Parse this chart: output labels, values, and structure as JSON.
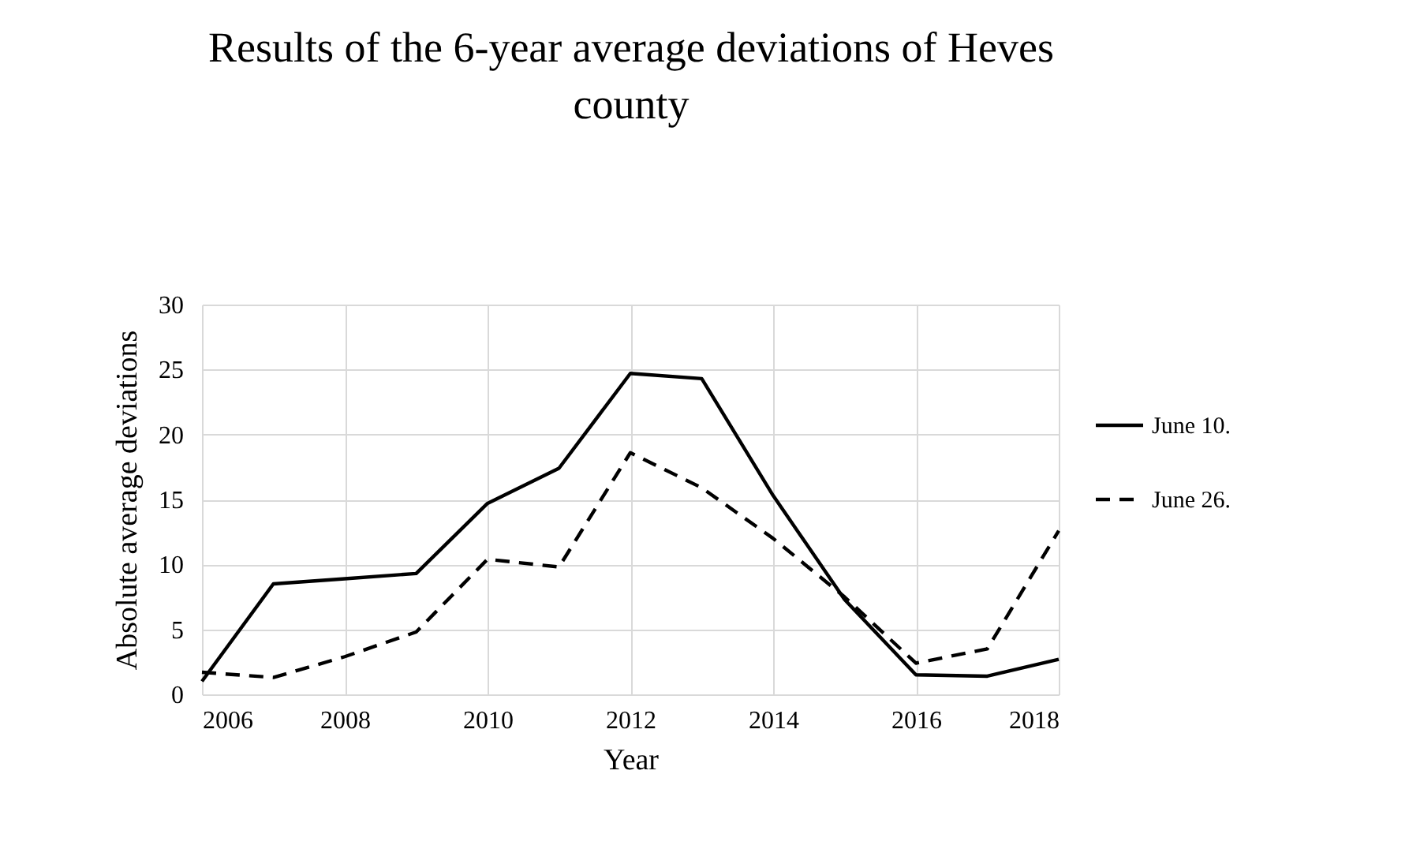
{
  "chart_data": {
    "type": "line",
    "title": "Results of the 6-year average deviations of Heves county",
    "xlabel": "Year",
    "ylabel": "Absolute average deviations",
    "x": [
      2006,
      2007,
      2008,
      2009,
      2010,
      2011,
      2012,
      2013,
      2014,
      2015,
      2016,
      2017,
      2018
    ],
    "series": [
      {
        "name": "June 10.",
        "color": "#000000",
        "line_style": "solid",
        "values": [
          1.0,
          8.5,
          8.9,
          9.3,
          14.7,
          17.4,
          24.7,
          24.3,
          15.3,
          7.3,
          1.5,
          1.4,
          2.7
        ]
      },
      {
        "name": "June 26.",
        "color": "#000000",
        "line_style": "dashed",
        "values": [
          1.7,
          1.3,
          2.9,
          4.8,
          10.4,
          9.8,
          18.6,
          15.9,
          12.0,
          7.5,
          2.4,
          3.5,
          12.6
        ]
      }
    ],
    "xlim": [
      2006,
      2018
    ],
    "xticks": [
      2006,
      2008,
      2010,
      2012,
      2014,
      2016,
      2018
    ],
    "ylim": [
      0,
      30
    ],
    "yticks": [
      0,
      5,
      10,
      15,
      20,
      25,
      30
    ],
    "grid": true,
    "legend": "right",
    "marker": "none"
  }
}
